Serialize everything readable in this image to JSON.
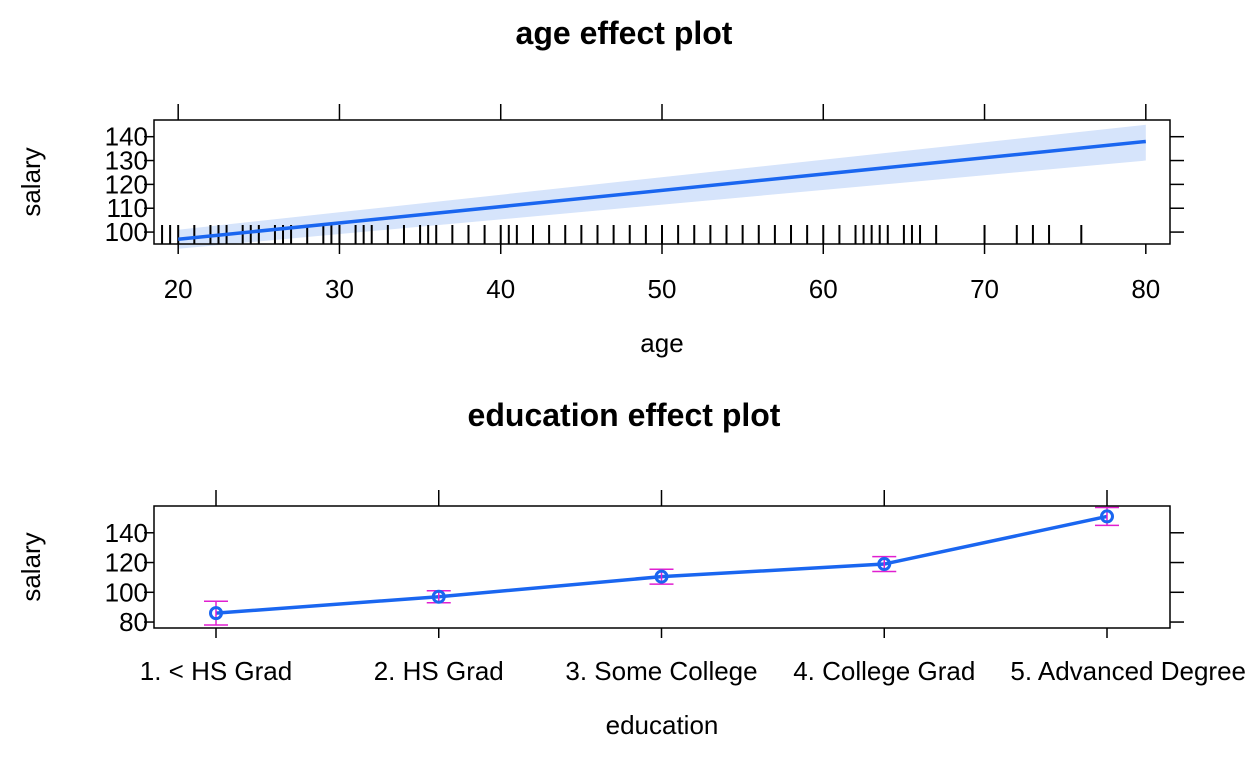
{
  "chart_data": [
    {
      "type": "line",
      "title": "age effect plot",
      "xlabel": "age",
      "ylabel": "salary",
      "xlim": [
        18.5,
        81.5
      ],
      "ylim": [
        95,
        147
      ],
      "xticks": [
        "20",
        "30",
        "40",
        "50",
        "60",
        "70",
        "80"
      ],
      "yticks": [
        "100",
        "110",
        "120",
        "130",
        "140"
      ],
      "series": [
        {
          "x": [
            20,
            80
          ],
          "y": [
            97,
            138
          ],
          "lower": [
            93,
            130
          ],
          "upper": [
            101,
            145
          ]
        }
      ],
      "rug": [
        19,
        19.5,
        20,
        21,
        22,
        22.5,
        23,
        24,
        24.5,
        25,
        26,
        26.5,
        27,
        28,
        29,
        29.5,
        30,
        31,
        31.5,
        32,
        33,
        34,
        35,
        35.5,
        36,
        37,
        38,
        39,
        40,
        40.5,
        41,
        42,
        43,
        44,
        45,
        46,
        47,
        48,
        49,
        50,
        51,
        52,
        53,
        54,
        55,
        56,
        57,
        58,
        59,
        60,
        61,
        62,
        62.5,
        63,
        63.5,
        64,
        65,
        65.5,
        66,
        67,
        70,
        72,
        73,
        74,
        76
      ],
      "colors": {
        "line": "#1a66f0",
        "band": "#d6e4fb"
      }
    },
    {
      "type": "line",
      "title": "education effect plot",
      "xlabel": "education",
      "ylabel": "salary",
      "categories": [
        "1. < HS Grad",
        "2. HS Grad",
        "3. Some College",
        "4. College Grad",
        "5. Advanced Degree"
      ],
      "ylim": [
        76,
        158
      ],
      "yticks": [
        "80",
        "100",
        "120",
        "140"
      ],
      "series": [
        {
          "values": [
            86,
            97,
            110.5,
            119,
            151
          ],
          "lower": [
            78,
            93,
            105.5,
            114,
            145
          ],
          "upper": [
            94,
            101,
            115.5,
            124,
            157
          ]
        }
      ],
      "colors": {
        "line": "#1a66f0",
        "errorbar": "#e01fd0"
      }
    }
  ]
}
